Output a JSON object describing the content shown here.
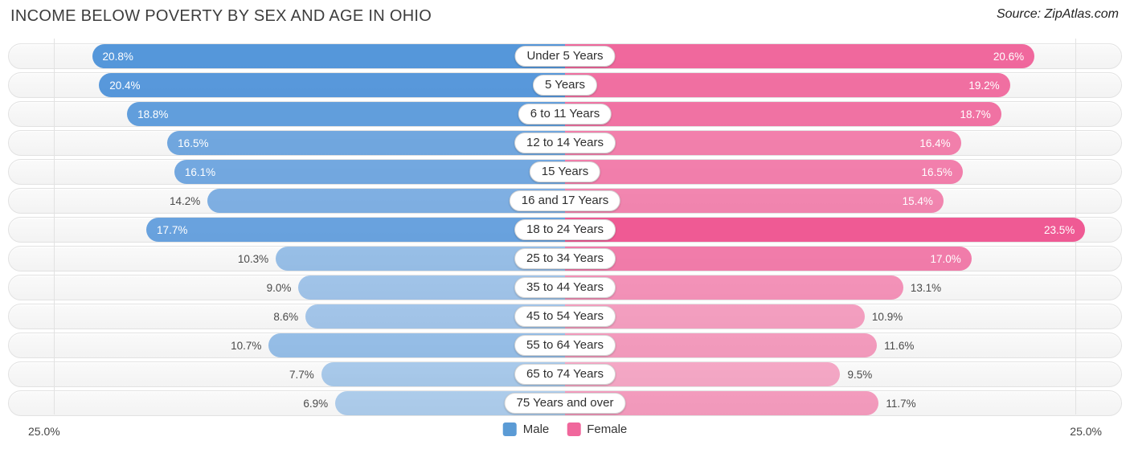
{
  "header": {
    "title": "INCOME BELOW POVERTY BY SEX AND AGE IN OHIO",
    "source": "Source: ZipAtlas.com"
  },
  "chart_data": {
    "type": "bar",
    "orientation": "horizontal-diverging",
    "title": "INCOME BELOW POVERTY BY SEX AND AGE IN OHIO",
    "categories": [
      "Under 5 Years",
      "5 Years",
      "6 to 11 Years",
      "12 to 14 Years",
      "15 Years",
      "16 and 17 Years",
      "18 to 24 Years",
      "25 to 34 Years",
      "35 to 44 Years",
      "45 to 54 Years",
      "55 to 64 Years",
      "65 to 74 Years",
      "75 Years and over"
    ],
    "series": [
      {
        "name": "Male",
        "color": "#478ed7",
        "legend_color": "#5b9bd5",
        "values": [
          20.8,
          20.4,
          18.8,
          16.5,
          16.1,
          14.2,
          17.7,
          10.3,
          9.0,
          8.6,
          10.7,
          7.7,
          6.9
        ]
      },
      {
        "name": "Female",
        "color": "#ef5a94",
        "legend_color": "#f0679c",
        "values": [
          20.6,
          19.2,
          18.7,
          16.4,
          16.5,
          15.4,
          23.5,
          17.0,
          13.1,
          10.9,
          11.6,
          9.5,
          11.7
        ]
      }
    ],
    "axis": {
      "max": 25,
      "left_tick_label": "25.0%",
      "right_tick_label": "25.0%"
    },
    "value_suffix": "%",
    "legend_position": "bottom-center",
    "grid": false
  }
}
